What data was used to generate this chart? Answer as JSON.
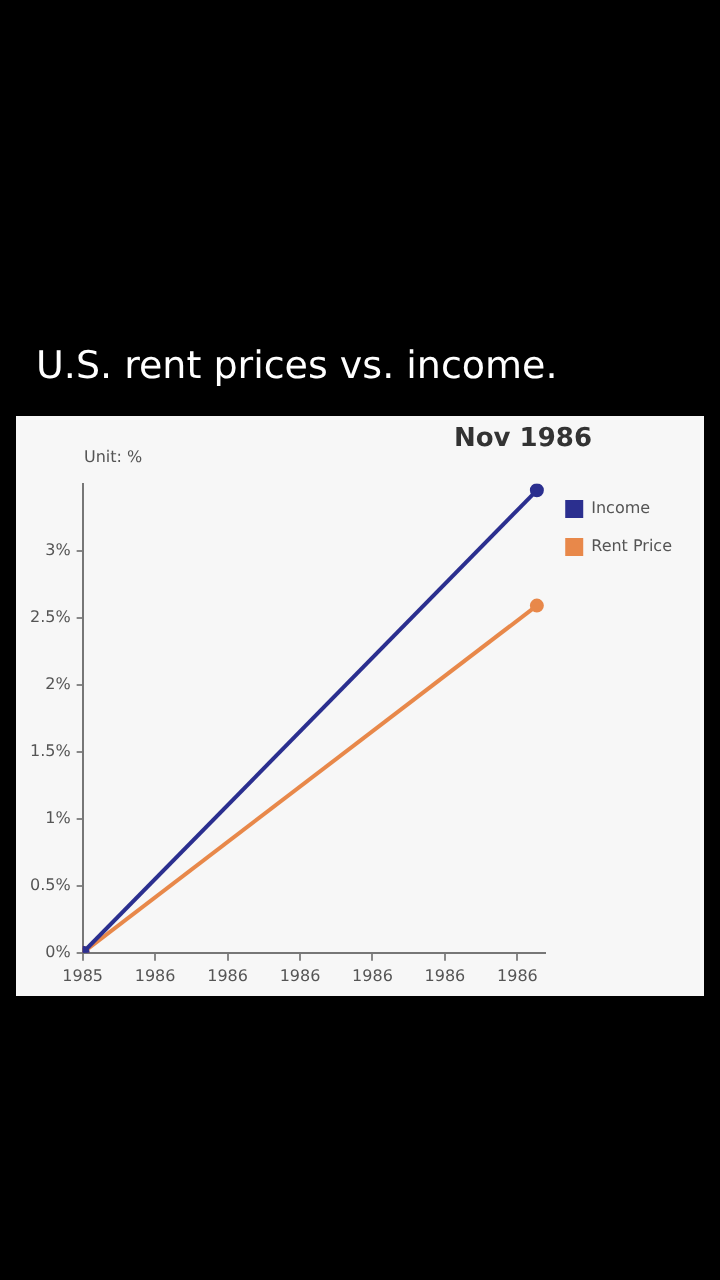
{
  "chart_data": {
    "type": "line",
    "title": "U.S. rent prices vs. income.",
    "subtitle": "Nov 1986",
    "ylabel": "Unit: %",
    "x": [
      "1985-12-15",
      "1986-11-06"
    ],
    "series": [
      {
        "name": "Income",
        "color": "#2b2f8f",
        "values": [
          0,
          3.45
        ]
      },
      {
        "name": "Rent Price",
        "color": "#e8884a",
        "values": [
          0,
          2.59
        ]
      }
    ],
    "xlim": [
      "1985-12-15",
      "1986-11-12"
    ],
    "xticks": [
      {
        "value": "1985-12-15",
        "label": "1985"
      },
      {
        "value": "1986-02-05",
        "label": "1986"
      },
      {
        "value": "1986-03-29",
        "label": "1986"
      },
      {
        "value": "1986-05-20",
        "label": "1986"
      },
      {
        "value": "1986-07-11",
        "label": "1986"
      },
      {
        "value": "1986-09-01",
        "label": "1986"
      },
      {
        "value": "1986-10-23",
        "label": "1986"
      }
    ],
    "ylim": [
      0,
      3.5
    ],
    "yticks": [
      {
        "value": 0,
        "label": "0%"
      },
      {
        "value": 0.5,
        "label": "0.5%"
      },
      {
        "value": 1,
        "label": "1%"
      },
      {
        "value": 1.5,
        "label": "1.5%"
      },
      {
        "value": 2,
        "label": "2%"
      },
      {
        "value": 2.5,
        "label": "2.5%"
      },
      {
        "value": 3,
        "label": "3%"
      }
    ],
    "grid": false,
    "legend": "top right",
    "marker": "circle",
    "line_style": "solid"
  }
}
